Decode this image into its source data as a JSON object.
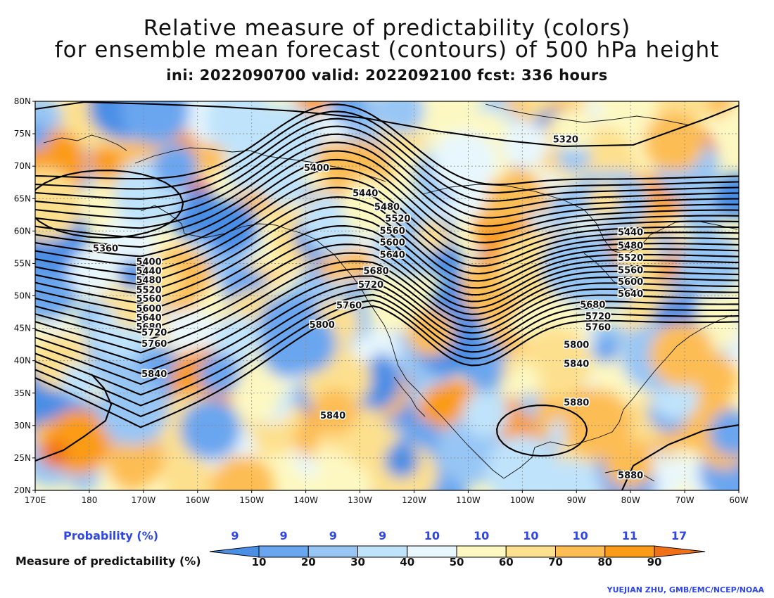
{
  "title": {
    "line1": "Relative measure of predictability (colors)",
    "line2": "for ensemble mean forecast (contours) of 500 hPa height",
    "line3": "ini: 2022090700 valid: 2022092100 fcst: 336 hours"
  },
  "axes": {
    "lat_labels": [
      "80N",
      "75N",
      "70N",
      "65N",
      "60N",
      "55N",
      "50N",
      "45N",
      "40N",
      "35N",
      "30N",
      "25N",
      "20N"
    ],
    "lon_labels": [
      "170E",
      "180",
      "170W",
      "160W",
      "150W",
      "140W",
      "130W",
      "120W",
      "110W",
      "100W",
      "90W",
      "80W",
      "70W",
      "60W"
    ]
  },
  "contour_labels": [
    {
      "text": "5320",
      "lon": -92,
      "lat": 74.2
    },
    {
      "text": "5400",
      "lon": -138,
      "lat": 69.8
    },
    {
      "text": "5440",
      "lon": -129,
      "lat": 65.9
    },
    {
      "text": "5480",
      "lon": -125,
      "lat": 63.8
    },
    {
      "text": "5520",
      "lon": -123,
      "lat": 62.0
    },
    {
      "text": "5560",
      "lon": -124,
      "lat": 60.1
    },
    {
      "text": "5600",
      "lon": -124,
      "lat": 58.3
    },
    {
      "text": "5640",
      "lon": -124,
      "lat": 56.4
    },
    {
      "text": "5680",
      "lon": -127,
      "lat": 53.9
    },
    {
      "text": "5720",
      "lon": -128,
      "lat": 51.8
    },
    {
      "text": "5760",
      "lon": -132,
      "lat": 48.6
    },
    {
      "text": "5800",
      "lon": -137,
      "lat": 45.6
    },
    {
      "text": "5840",
      "lon": -135,
      "lat": 31.6
    },
    {
      "text": "5360",
      "lon": -177,
      "lat": 57.4
    },
    {
      "text": "5400",
      "lon": -169,
      "lat": 55.3
    },
    {
      "text": "5440",
      "lon": -169,
      "lat": 53.9
    },
    {
      "text": "5480",
      "lon": -169,
      "lat": 52.5
    },
    {
      "text": "5520",
      "lon": -169,
      "lat": 51.0
    },
    {
      "text": "5560",
      "lon": -169,
      "lat": 49.6
    },
    {
      "text": "5600",
      "lon": -169,
      "lat": 48.1
    },
    {
      "text": "5640",
      "lon": -169,
      "lat": 46.7
    },
    {
      "text": "5680",
      "lon": -169,
      "lat": 45.3
    },
    {
      "text": "5720",
      "lon": -168,
      "lat": 44.4
    },
    {
      "text": "5760",
      "lon": -168,
      "lat": 42.7
    },
    {
      "text": "5840",
      "lon": -168,
      "lat": 38.0
    },
    {
      "text": "5440",
      "lon": -80,
      "lat": 59.9
    },
    {
      "text": "5480",
      "lon": -80,
      "lat": 57.8
    },
    {
      "text": "5520",
      "lon": -80,
      "lat": 55.9
    },
    {
      "text": "5560",
      "lon": -80,
      "lat": 54.0
    },
    {
      "text": "5600",
      "lon": -80,
      "lat": 52.2
    },
    {
      "text": "5640",
      "lon": -80,
      "lat": 50.4
    },
    {
      "text": "5680",
      "lon": -87,
      "lat": 48.7
    },
    {
      "text": "5720",
      "lon": -86,
      "lat": 46.9
    },
    {
      "text": "5760",
      "lon": -86,
      "lat": 45.2
    },
    {
      "text": "5800",
      "lon": -90,
      "lat": 42.5
    },
    {
      "text": "5840",
      "lon": -90,
      "lat": 39.6
    },
    {
      "text": "5880",
      "lon": -90,
      "lat": 33.6
    },
    {
      "text": "5880",
      "lon": -80,
      "lat": 22.4
    }
  ],
  "legend": {
    "probability_label": "Probability (%)",
    "measure_label": "Measure of predictability (%)",
    "probabilities": [
      "9",
      "9",
      "9",
      "9",
      "10",
      "10",
      "10",
      "10",
      "11",
      "17"
    ],
    "ticks": [
      "10",
      "20",
      "30",
      "40",
      "50",
      "60",
      "70",
      "80",
      "90"
    ],
    "colors": [
      "#4a8ee6",
      "#6aa6ef",
      "#97c6f5",
      "#bfe3fb",
      "#e8f7fd",
      "#fdf8c2",
      "#fde08e",
      "#fdbd55",
      "#fb9b18",
      "#f07018"
    ]
  },
  "credit": "YUEJIAN ZHU, GMB/EMC/NCEP/NOAA"
}
